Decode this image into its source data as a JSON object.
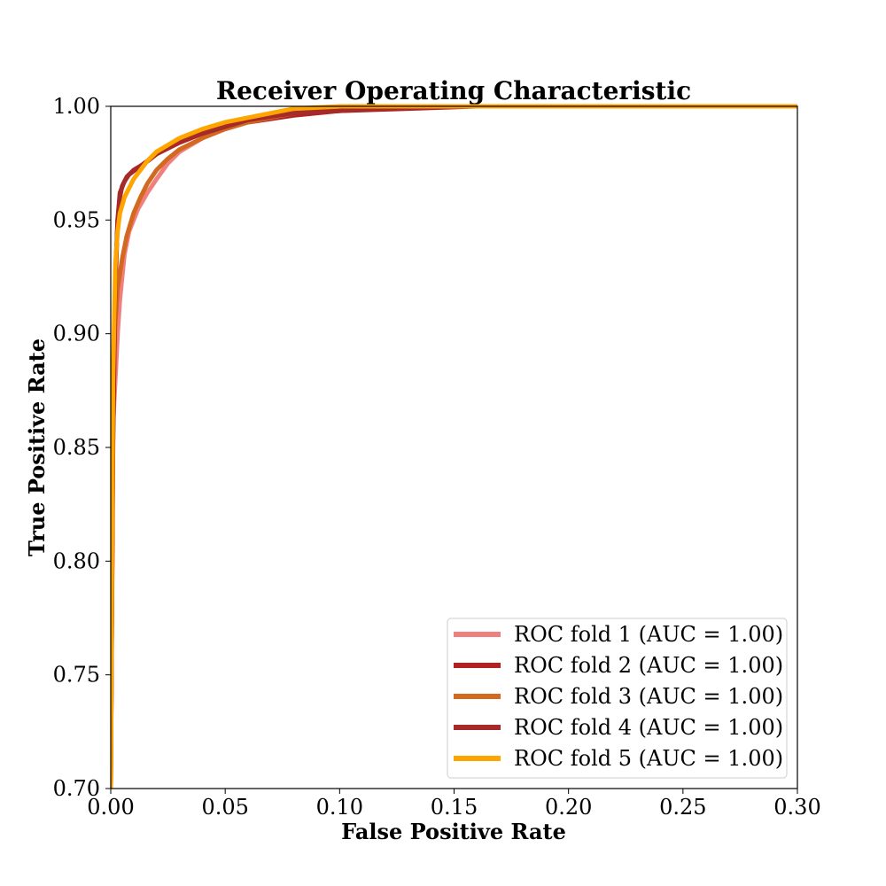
{
  "chart_data": {
    "type": "line",
    "title": "Receiver Operating Characteristic",
    "xlabel": "False Positive Rate",
    "ylabel": "True Positive Rate",
    "xlim": [
      0.0,
      0.3
    ],
    "ylim": [
      0.7,
      1.0
    ],
    "x_ticks": [
      "0.00",
      "0.05",
      "0.10",
      "0.15",
      "0.20",
      "0.25",
      "0.30"
    ],
    "y_ticks": [
      "0.70",
      "0.75",
      "0.80",
      "0.85",
      "0.90",
      "0.95",
      "1.00"
    ],
    "grid": false,
    "legend_position": "lower-right",
    "series": [
      {
        "name": "ROC fold 1 (AUC = 1.00)",
        "color": "#f08080",
        "x": [
          0.0,
          0.001,
          0.002,
          0.003,
          0.004,
          0.006,
          0.008,
          0.012,
          0.016,
          0.02,
          0.025,
          0.03,
          0.04,
          0.05,
          0.06,
          0.07,
          0.08,
          0.1,
          0.12,
          0.15,
          0.3
        ],
        "y": [
          0.7,
          0.86,
          0.88,
          0.9,
          0.915,
          0.935,
          0.945,
          0.955,
          0.962,
          0.968,
          0.975,
          0.98,
          0.986,
          0.991,
          0.994,
          0.996,
          0.998,
          0.999,
          1.0,
          1.0,
          1.0
        ]
      },
      {
        "name": "ROC fold 2 (AUC = 1.00)",
        "color": "#b22222",
        "x": [
          0.0,
          0.001,
          0.002,
          0.003,
          0.004,
          0.005,
          0.007,
          0.01,
          0.015,
          0.02,
          0.03,
          0.04,
          0.05,
          0.06,
          0.08,
          0.1,
          0.13,
          0.16,
          0.3
        ],
        "y": [
          0.7,
          0.86,
          0.92,
          0.95,
          0.96,
          0.965,
          0.969,
          0.972,
          0.975,
          0.979,
          0.984,
          0.988,
          0.991,
          0.993,
          0.996,
          0.998,
          0.999,
          1.0,
          1.0
        ]
      },
      {
        "name": "ROC fold 3 (AUC = 1.00)",
        "color": "#d2691e",
        "x": [
          0.0,
          0.001,
          0.002,
          0.003,
          0.005,
          0.007,
          0.01,
          0.013,
          0.016,
          0.02,
          0.025,
          0.03,
          0.04,
          0.05,
          0.06,
          0.08,
          0.1,
          0.12,
          0.3
        ],
        "y": [
          0.7,
          0.88,
          0.905,
          0.92,
          0.933,
          0.943,
          0.953,
          0.96,
          0.966,
          0.972,
          0.977,
          0.981,
          0.986,
          0.99,
          0.993,
          0.997,
          0.999,
          1.0,
          1.0
        ]
      },
      {
        "name": "ROC fold 4 (AUC = 1.00)",
        "color": "#a52a2a",
        "x": [
          0.0,
          0.001,
          0.002,
          0.003,
          0.004,
          0.006,
          0.008,
          0.012,
          0.016,
          0.02,
          0.025,
          0.03,
          0.04,
          0.05,
          0.06,
          0.08,
          0.1,
          0.12,
          0.15,
          0.3
        ],
        "y": [
          0.7,
          0.85,
          0.925,
          0.95,
          0.962,
          0.967,
          0.97,
          0.973,
          0.976,
          0.979,
          0.982,
          0.985,
          0.988,
          0.991,
          0.994,
          0.997,
          0.998,
          0.999,
          1.0,
          1.0
        ]
      },
      {
        "name": "ROC fold 5 (AUC = 1.00)",
        "color": "#ffa500",
        "x": [
          0.0,
          0.001,
          0.002,
          0.003,
          0.004,
          0.006,
          0.008,
          0.01,
          0.013,
          0.016,
          0.02,
          0.025,
          0.03,
          0.04,
          0.05,
          0.06,
          0.07,
          0.08,
          0.1,
          0.3
        ],
        "y": [
          0.7,
          0.88,
          0.93,
          0.945,
          0.953,
          0.96,
          0.964,
          0.968,
          0.972,
          0.976,
          0.98,
          0.983,
          0.986,
          0.99,
          0.993,
          0.995,
          0.997,
          0.999,
          1.0,
          1.0
        ]
      }
    ]
  }
}
